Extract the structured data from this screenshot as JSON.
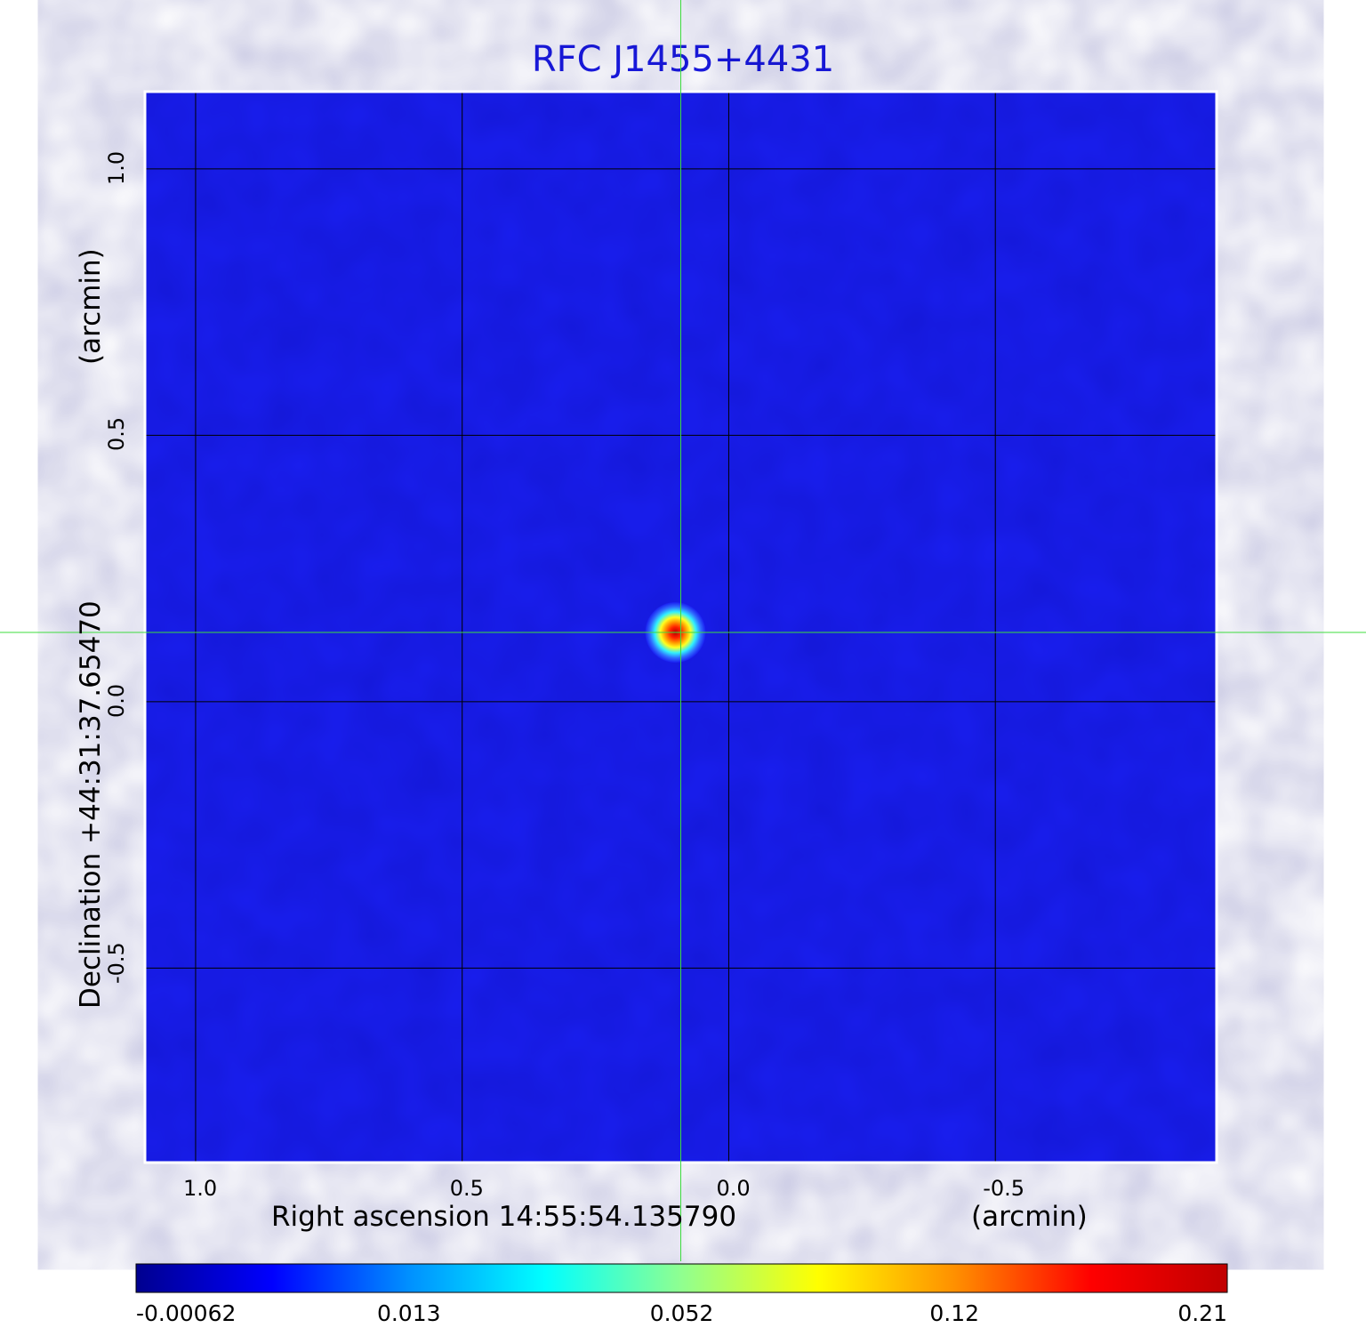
{
  "chart_data": {
    "type": "heatmap",
    "title": "RFC J1455+4431",
    "xlabel": "Right ascension  14:55:54.135790",
    "xunit": "(arcmin)",
    "ylabel": "Declination  +44:31:37.65470",
    "yunit": "(arcmin)",
    "x_ticks": [
      "1.0",
      "0.5",
      "0.0",
      "-0.5"
    ],
    "x_tick_values": [
      1.0,
      0.5,
      0.0,
      -0.5
    ],
    "y_ticks": [
      "1.0",
      "0.5",
      "0.0",
      "-0.5"
    ],
    "y_tick_values": [
      1.0,
      0.5,
      0.0,
      -0.5
    ],
    "xlim": [
      1.095,
      -0.915
    ],
    "ylim": [
      -0.865,
      1.145
    ],
    "grid": true,
    "crosshair": {
      "x": 0.09,
      "y": 0.13
    },
    "source": {
      "x": 0.1,
      "y": 0.13,
      "peak": 0.21
    },
    "colorbar": {
      "ticks": [
        "-0.00062",
        "0.013",
        "0.052",
        "0.12",
        "0.21"
      ],
      "tick_values": [
        -0.00062,
        0.013,
        0.052,
        0.12,
        0.21
      ],
      "colors": [
        "#00008f",
        "#0000ff",
        "#0090ff",
        "#00ffff",
        "#90ff90",
        "#ffff00",
        "#ff9000",
        "#ff0000",
        "#c00000"
      ]
    },
    "colors": {
      "background": "#1a1ff0",
      "grid": "#000000",
      "crosshair": "#3ddc3d",
      "frame": "#ffffff",
      "title": "#1a1adf"
    }
  }
}
